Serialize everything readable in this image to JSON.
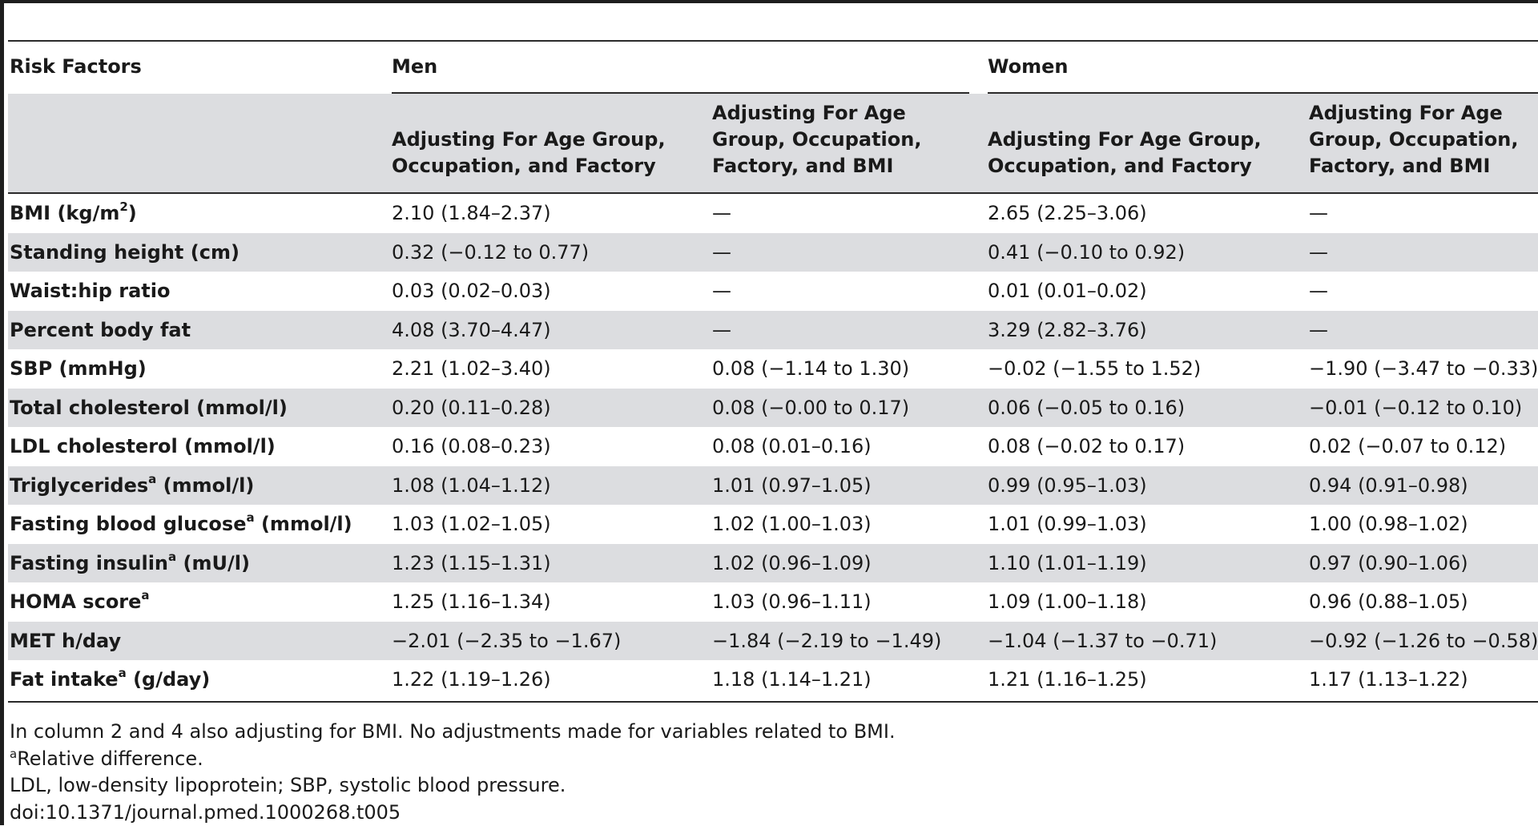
{
  "table": {
    "header": {
      "risk_factors": "Risk Factors",
      "men": "Men",
      "women": "Women",
      "men_col1": "Adjusting For Age Group,\nOccupation, and Factory",
      "men_col2": "Adjusting For Age\nGroup, Occupation,\nFactory, and BMI",
      "women_col1": "Adjusting For Age Group,\nOccupation, and Factory",
      "women_col2": "Adjusting For Age\nGroup, Occupation,\nFactory, and BMI"
    },
    "rows": [
      {
        "label": "BMI (kg/m",
        "sup": "2",
        "suffix": ")",
        "values": [
          "2.10 (1.84–2.37)",
          "—",
          "2.65 (2.25–3.06)",
          "—"
        ]
      },
      {
        "label": "Standing height (cm)",
        "sup": "",
        "suffix": "",
        "values": [
          "0.32 (−0.12 to 0.77)",
          "—",
          "0.41 (−0.10 to 0.92)",
          "—"
        ]
      },
      {
        "label": "Waist:hip ratio",
        "sup": "",
        "suffix": "",
        "values": [
          "0.03 (0.02–0.03)",
          "—",
          "0.01 (0.01–0.02)",
          "—"
        ]
      },
      {
        "label": "Percent body fat",
        "sup": "",
        "suffix": "",
        "values": [
          "4.08 (3.70–4.47)",
          "—",
          "3.29 (2.82–3.76)",
          "—"
        ]
      },
      {
        "label": "SBP (mmHg)",
        "sup": "",
        "suffix": "",
        "values": [
          "2.21 (1.02–3.40)",
          "0.08 (−1.14 to 1.30)",
          "−0.02 (−1.55 to 1.52)",
          "−1.90 (−3.47 to −0.33)"
        ]
      },
      {
        "label": "Total cholesterol (mmol/l)",
        "sup": "",
        "suffix": "",
        "values": [
          "0.20 (0.11–0.28)",
          "0.08 (−0.00 to 0.17)",
          "0.06 (−0.05 to 0.16)",
          "−0.01 (−0.12 to 0.10)"
        ]
      },
      {
        "label": "LDL cholesterol (mmol/l)",
        "sup": "",
        "suffix": "",
        "values": [
          "0.16 (0.08–0.23)",
          "0.08 (0.01–0.16)",
          "0.08 (−0.02 to 0.17)",
          "0.02 (−0.07 to 0.12)"
        ]
      },
      {
        "label": "Triglycerides",
        "sup": "a",
        "suffix": " (mmol/l)",
        "values": [
          "1.08 (1.04–1.12)",
          "1.01 (0.97–1.05)",
          "0.99 (0.95–1.03)",
          "0.94 (0.91–0.98)"
        ]
      },
      {
        "label": "Fasting blood glucose",
        "sup": "a",
        "suffix": " (mmol/l)",
        "values": [
          "1.03 (1.02–1.05)",
          "1.02 (1.00–1.03)",
          "1.01 (0.99–1.03)",
          "1.00 (0.98–1.02)"
        ]
      },
      {
        "label": "Fasting insulin",
        "sup": "a",
        "suffix": " (mU/l)",
        "values": [
          "1.23 (1.15–1.31)",
          "1.02 (0.96–1.09)",
          "1.10 (1.01–1.19)",
          "0.97 (0.90–1.06)"
        ]
      },
      {
        "label": "HOMA score",
        "sup": "a",
        "suffix": "",
        "values": [
          "1.25 (1.16–1.34)",
          "1.03 (0.96–1.11)",
          "1.09 (1.00–1.18)",
          "0.96 (0.88–1.05)"
        ]
      },
      {
        "label": "MET h/day",
        "sup": "",
        "suffix": "",
        "values": [
          "−2.01 (−2.35 to −1.67)",
          "−1.84 (−2.19 to −1.49)",
          "−1.04 (−1.37 to −0.71)",
          "−0.92 (−1.26 to −0.58)"
        ]
      },
      {
        "label": "Fat intake",
        "sup": "a",
        "suffix": " (g/day)",
        "values": [
          "1.22 (1.19–1.26)",
          "1.18 (1.14–1.21)",
          "1.21 (1.16–1.25)",
          "1.17 (1.13–1.22)"
        ]
      }
    ]
  },
  "footnotes": {
    "note1": "In column 2 and 4 also adjusting for BMI. No adjustments made for variables related to BMI.",
    "note2_sup": "a",
    "note2": "Relative difference.",
    "note3": "LDL, low-density lipoprotein; SBP, systolic blood pressure.",
    "doi": "doi:10.1371/journal.pmed.1000268.t005"
  }
}
